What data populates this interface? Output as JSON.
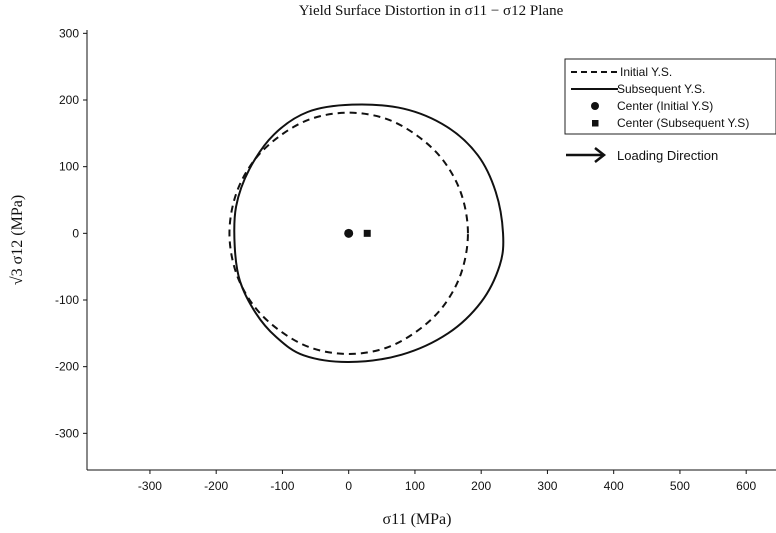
{
  "chart_data": {
    "type": "line",
    "title": "Yield Surface Distortion in σ11 − σ12 Plane",
    "xlabel": "σ11 (MPa)",
    "ylabel": "√3 σ12 (MPa)",
    "xlim": [
      -395,
      645
    ],
    "ylim": [
      -355,
      305
    ],
    "xticks": [
      -300,
      -200,
      -100,
      0,
      100,
      200,
      300,
      400,
      500,
      600
    ],
    "yticks": [
      -300,
      -200,
      -100,
      0,
      100,
      200,
      300
    ],
    "grid": false,
    "legend_position": "top-right",
    "series": [
      {
        "name": "Initial Y.S.",
        "style": "dashed",
        "x": [
          180,
          170,
          143,
          104,
          56,
          0,
          -56,
          -104,
          -143,
          -170,
          -180,
          -170,
          -143,
          -104,
          -56,
          0,
          56,
          104,
          143,
          170,
          180
        ],
        "y": [
          0,
          59,
          109,
          146,
          172,
          181,
          172,
          146,
          109,
          59,
          0,
          -59,
          -109,
          -146,
          -172,
          -181,
          -172,
          -146,
          -109,
          -59,
          0
        ]
      },
      {
        "name": "Subsequent Y.S.",
        "style": "solid",
        "x": [
          233,
          222,
          195,
          148,
          83,
          5,
          -62,
          -113,
          -150,
          -170,
          -172,
          -164,
          -140,
          -110,
          -68,
          0,
          80,
          150,
          200,
          228,
          233
        ],
        "y": [
          0,
          62,
          117,
          160,
          187,
          193,
          182,
          148,
          96,
          40,
          -20,
          -72,
          -120,
          -155,
          -183,
          -193,
          -182,
          -150,
          -103,
          -48,
          0
        ]
      },
      {
        "name": "Center (Initial Y.S)",
        "marker": "circle",
        "x": [
          0
        ],
        "y": [
          0
        ]
      },
      {
        "name": "Center (Subsequent Y.S)",
        "marker": "square",
        "x": [
          28
        ],
        "y": [
          0
        ]
      }
    ],
    "annotations": [
      {
        "type": "arrow",
        "text": "Loading Direction"
      }
    ]
  }
}
